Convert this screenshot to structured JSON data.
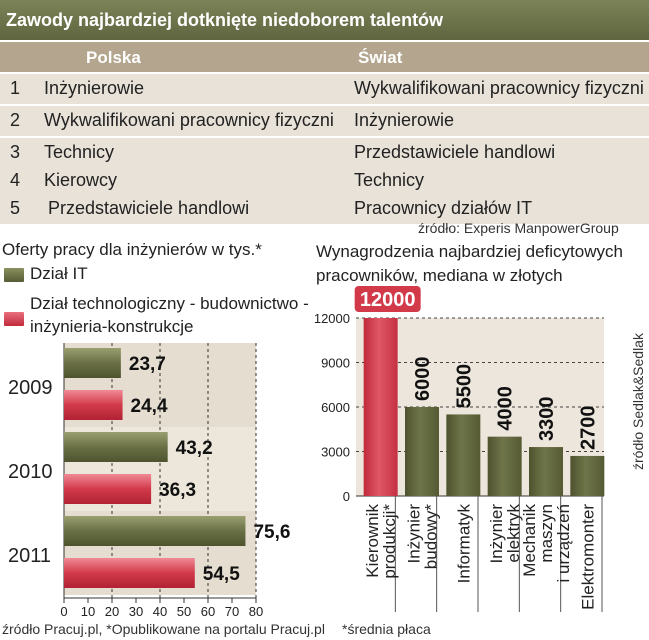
{
  "title": "Zawody najbardziej dotknięte niedoborem talentów",
  "table": {
    "headers": [
      "Polska",
      "Świat"
    ],
    "rows": [
      {
        "rank": "1",
        "polska": "Inżynierowie",
        "swiat": "Wykwalifikowani pracownicy fizyczni"
      },
      {
        "rank": "2",
        "polska": "Wykwalifikowani pracownicy fizyczni",
        "swiat": "Inżynierowie"
      },
      {
        "rank": "3",
        "polska": "Technicy",
        "swiat": "Przedstawiciele handlowi"
      },
      {
        "rank": "4",
        "polska": "Kierowcy",
        "swiat": "Technicy"
      },
      {
        "rank": "5",
        "polska": "Przedstawiciele handlowi",
        "swiat": "Pracownicy działów IT"
      }
    ],
    "source": "źródło: Experis ManpowerGroup"
  },
  "colors": {
    "olive": "#6a7045",
    "red": "#d23a4a"
  },
  "chart_data": [
    {
      "type": "bar",
      "orientation": "horizontal",
      "title": "Oferty pracy dla inżynierów w tys.*",
      "categories": [
        "2009",
        "2010",
        "2011"
      ],
      "series": [
        {
          "name": "Dział IT",
          "values": [
            23.7,
            43.2,
            75.6
          ],
          "labels": [
            "23,7",
            "43,2",
            "75,6"
          ]
        },
        {
          "name": "Dział technologiczny - budownictwo - inżynieria-konstrukcje",
          "values": [
            24.4,
            36.3,
            54.5
          ],
          "labels": [
            "24,4",
            "36,3",
            "54,5"
          ]
        }
      ],
      "xlim": [
        0,
        80
      ],
      "xticks": [
        "0",
        "10",
        "20",
        "30",
        "40",
        "50",
        "60",
        "70",
        "80"
      ],
      "source": "źródło Pracuj.pl, *Opublikowane na portalu Pracuj.pl"
    },
    {
      "type": "bar",
      "title": "Wynagrodzenia najbardziej deficytowych pracowników, mediana w złotych",
      "categories": [
        "Kierownik produkcji*",
        "Inżynier budowy*",
        "Informatyk",
        "Inżynier elektryk",
        "Mechanik maszyn i urządzeń",
        "Elektromonter"
      ],
      "values": [
        12000,
        6000,
        5500,
        4000,
        3300,
        2700
      ],
      "labels": [
        "12000",
        "6000",
        "5500",
        "4000",
        "3300",
        "2700"
      ],
      "ylim": [
        0,
        12000
      ],
      "yticks": [
        "0",
        "3000",
        "6000",
        "9000",
        "12000"
      ],
      "source": "źródło Sedlak&Sedlak",
      "footnote": "*średnia płaca"
    }
  ]
}
